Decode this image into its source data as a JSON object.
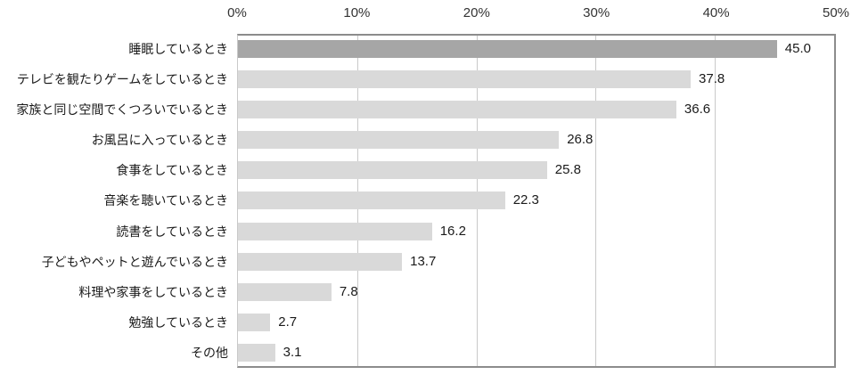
{
  "chart_data": {
    "type": "bar",
    "orientation": "horizontal",
    "title": "",
    "xlabel": "",
    "ylabel": "",
    "xlim": [
      0,
      50
    ],
    "x_ticks": [
      "0%",
      "10%",
      "20%",
      "30%",
      "40%",
      "50%"
    ],
    "grid": true,
    "legend": "none",
    "highlight_index": 0,
    "categories": [
      "睡眠しているとき",
      "テレビを観たりゲームをしているとき",
      "家族と同じ空間でくつろいでいるとき",
      "お風呂に入っているとき",
      "食事をしているとき",
      "音楽を聴いているとき",
      "読書をしているとき",
      "子どもやペットと遊んでいるとき",
      "料理や家事をしているとき",
      "勉強しているとき",
      "その他"
    ],
    "values": [
      45.0,
      37.8,
      36.6,
      26.8,
      25.8,
      22.3,
      16.2,
      13.7,
      7.8,
      2.7,
      3.1
    ],
    "value_labels": [
      "45.0",
      "37.8",
      "36.6",
      "26.8",
      "25.8",
      "22.3",
      "16.2",
      "13.7",
      "7.8",
      "2.7",
      "3.1"
    ],
    "colors": {
      "bar_default": "#d9d9d9",
      "bar_highlight": "#a6a6a6",
      "gridline": "#c9c9c9",
      "plot_border": "#8c8c8c",
      "text": "#1a1a1a",
      "background": "#ffffff"
    }
  }
}
